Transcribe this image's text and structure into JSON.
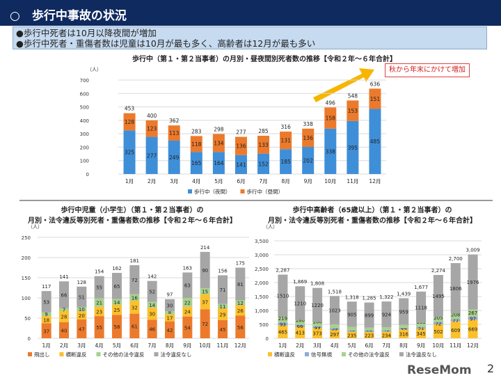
{
  "header": {
    "title": "○　歩行中事故の状況"
  },
  "summary": [
    "●歩行中死者は10月以降夜間が増加",
    "●歩行中死者・重傷者数は児童は10月が最も多く、高齢者は12月が最も多い"
  ],
  "callout": "秋から年末にかけて増加",
  "logo": "ReseMom",
  "page_number": "2",
  "chart_data": [
    {
      "type": "bar",
      "stacked": true,
      "title": [
        "歩行中（第１・第２当事者）の月別・昼夜間別死者数の推移【令和２年～６年合計】"
      ],
      "ylabel": "（人）",
      "ylim": [
        0,
        700
      ],
      "yticks": [
        0,
        100,
        200,
        300,
        400,
        500,
        600,
        700
      ],
      "categories": [
        "1月",
        "2月",
        "3月",
        "4月",
        "5月",
        "6月",
        "7月",
        "8月",
        "9月",
        "10月",
        "11月",
        "12月"
      ],
      "series": [
        {
          "name": "歩行中（夜間）",
          "color": "#3f8fd8",
          "values": [
            325,
            277,
            249,
            165,
            164,
            141,
            152,
            185,
            202,
            338,
            395,
            485
          ]
        },
        {
          "name": "歩行中（昼間）",
          "color": "#ec7a2c",
          "values": [
            128,
            123,
            113,
            118,
            134,
            136,
            133,
            131,
            136,
            158,
            153,
            151
          ]
        }
      ],
      "totals": [
        453,
        400,
        362,
        283,
        298,
        277,
        285,
        316,
        338,
        496,
        548,
        636
      ],
      "legend": "bottom",
      "grid": true
    },
    {
      "type": "bar",
      "stacked": true,
      "title": [
        "歩行中児童（小学生）（第１・第２当事者）の",
        "月別・法令違反等別死者・重傷者数の推移【令和２年～６年合計】"
      ],
      "ylabel": "（人）",
      "ylim": [
        0,
        250
      ],
      "yticks": [
        0,
        50,
        100,
        150,
        200,
        250
      ],
      "categories": [
        "1月",
        "2月",
        "3月",
        "4月",
        "5月",
        "6月",
        "7月",
        "8月",
        "9月",
        "10月",
        "11月",
        "12月"
      ],
      "series": [
        {
          "name": "飛出し",
          "color": "#ec7a2c",
          "values": [
            37,
            40,
            47,
            55,
            58,
            61,
            46,
            42,
            54,
            72,
            45,
            56
          ]
        },
        {
          "name": "横断違反",
          "color": "#fbc02d",
          "values": [
            18,
            28,
            20,
            23,
            25,
            32,
            30,
            17,
            24,
            37,
            29,
            26
          ]
        },
        {
          "name": "その他の法令違反",
          "color": "#a9d08e",
          "values": [
            9,
            7,
            10,
            21,
            14,
            16,
            14,
            8,
            22,
            15,
            11,
            12
          ]
        },
        {
          "name": "法令違反なし",
          "color": "#a6a6a6",
          "values": [
            53,
            66,
            51,
            55,
            65,
            72,
            52,
            30,
            63,
            90,
            71,
            81
          ]
        }
      ],
      "totals": [
        117,
        141,
        128,
        154,
        162,
        181,
        142,
        97,
        163,
        214,
        156,
        175
      ],
      "legend": "bottom",
      "grid": true
    },
    {
      "type": "bar",
      "stacked": true,
      "title": [
        "歩行中高齢者（65歳以上）（第１・第２当事者）の",
        "月別・法令違反等別死者・重傷者数の推移【令和２年～６年合計】"
      ],
      "ylabel": "（人）",
      "ylim": [
        0,
        3500
      ],
      "yticks": [
        "0",
        "500",
        "1,000",
        "1,500",
        "2,000",
        "2,500",
        "3,000",
        "3,500"
      ],
      "categories": [
        "1月",
        "2月",
        "3月",
        "4月",
        "5月",
        "6月",
        "7月",
        "8月",
        "9月",
        "10月",
        "11月",
        "12月"
      ],
      "series": [
        {
          "name": "横断違反",
          "color": "#fbc02d",
          "values": [
            465,
            413,
            373,
            297,
            235,
            223,
            234,
            316,
            345,
            502,
            609,
            669
          ]
        },
        {
          "name": "信号無視",
          "color": "#8faadc",
          "values": [
            93,
            66,
            49,
            59,
            40,
            51,
            43,
            44,
            51,
            72,
            77,
            97
          ]
        },
        {
          "name": "その他の法令違反",
          "color": "#a9d08e",
          "values": [
            219,
            180,
            166,
            139,
            138,
            112,
            121,
            120,
            163,
            205,
            208,
            267
          ]
        },
        {
          "name": "法令違反なし",
          "color": "#a6a6a6",
          "values": [
            1510,
            1210,
            1220,
            1023,
            905,
            899,
            924,
            959,
            1118,
            1495,
            1806,
            1976
          ]
        }
      ],
      "totals": [
        "2,287",
        "1,869",
        "1,808",
        "1,518",
        "1,318",
        "1,285",
        "1,322",
        "1,439",
        "1,677",
        "2,274",
        "2,700",
        "3,009"
      ],
      "legend": "bottom",
      "grid": true
    }
  ]
}
